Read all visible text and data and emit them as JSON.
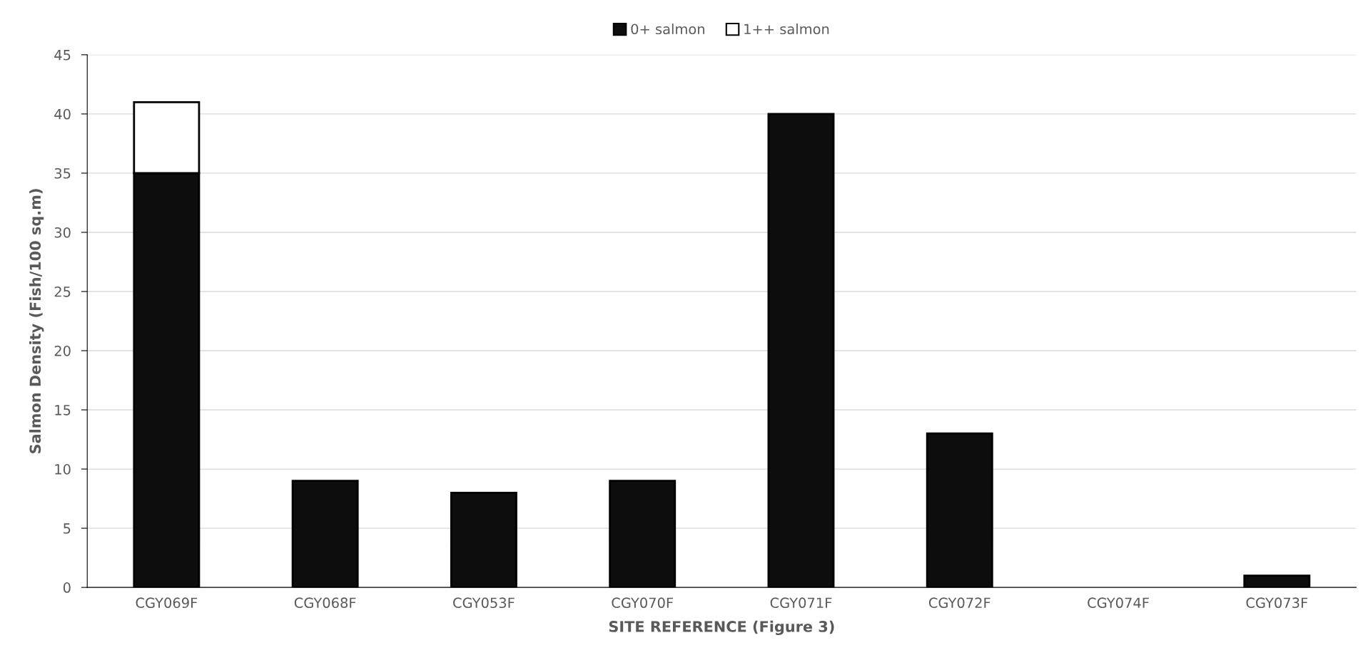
{
  "chart_data": {
    "type": "bar",
    "stacked": true,
    "xlabel": "SITE REFERENCE (Figure 3)",
    "ylabel": "Salmon Density (Fish/100 sq.m)",
    "categories": [
      "CGY069F",
      "CGY068F",
      "CGY053F",
      "CGY070F",
      "CGY071F",
      "CGY072F",
      "CGY074F",
      "CGY073F"
    ],
    "series": [
      {
        "name": "0+ salmon",
        "color": "#0d0d0d",
        "values": [
          35,
          9,
          8,
          9,
          40,
          13,
          0,
          1
        ]
      },
      {
        "name": "1++ salmon",
        "color": "#ffffff",
        "values": [
          6,
          0,
          0,
          0,
          0,
          0,
          0,
          0
        ]
      }
    ],
    "ylim": [
      0,
      45
    ],
    "yticks": [
      0,
      5,
      10,
      15,
      20,
      25,
      30,
      35,
      40,
      45
    ],
    "grid": "y",
    "legend": "top"
  }
}
